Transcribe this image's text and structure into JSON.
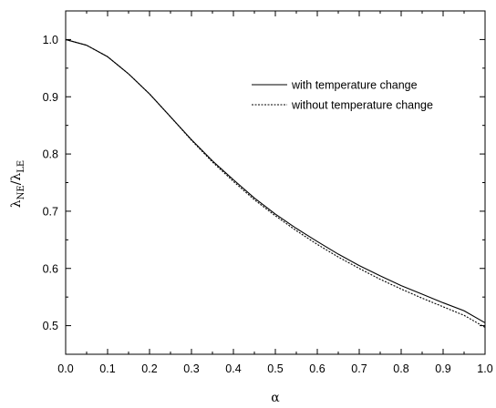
{
  "chart_data": {
    "type": "line",
    "title": "",
    "xlabel": "α",
    "ylabel": {
      "base": "λ",
      "sub1": "NE",
      "mid": "/λ",
      "sub2": "LE"
    },
    "xlim": [
      0.0,
      1.0
    ],
    "ylim": [
      0.45,
      1.05
    ],
    "x_ticks": [
      "0.0",
      "0.1",
      "0.2",
      "0.3",
      "0.4",
      "0.5",
      "0.6",
      "0.7",
      "0.8",
      "0.9",
      "1.0"
    ],
    "y_ticks": [
      "0.5",
      "0.6",
      "0.7",
      "0.8",
      "0.9",
      "1.0"
    ],
    "grid": false,
    "legend_position": "upper-right",
    "x": [
      0.0,
      0.05,
      0.1,
      0.15,
      0.2,
      0.25,
      0.3,
      0.35,
      0.4,
      0.45,
      0.5,
      0.55,
      0.6,
      0.65,
      0.7,
      0.75,
      0.8,
      0.85,
      0.9,
      0.95,
      1.0
    ],
    "series": [
      {
        "name": "with temperature change",
        "style": "solid",
        "color": "#000000",
        "values": [
          1.0,
          0.99,
          0.97,
          0.94,
          0.905,
          0.865,
          0.825,
          0.788,
          0.755,
          0.723,
          0.695,
          0.67,
          0.647,
          0.625,
          0.605,
          0.587,
          0.57,
          0.555,
          0.54,
          0.526,
          0.505
        ]
      },
      {
        "name": "without temperature change",
        "style": "dotted",
        "color": "#000000",
        "values": [
          1.0,
          0.99,
          0.97,
          0.94,
          0.905,
          0.865,
          0.824,
          0.786,
          0.752,
          0.72,
          0.692,
          0.666,
          0.642,
          0.62,
          0.6,
          0.581,
          0.564,
          0.548,
          0.533,
          0.518,
          0.497
        ]
      }
    ]
  }
}
